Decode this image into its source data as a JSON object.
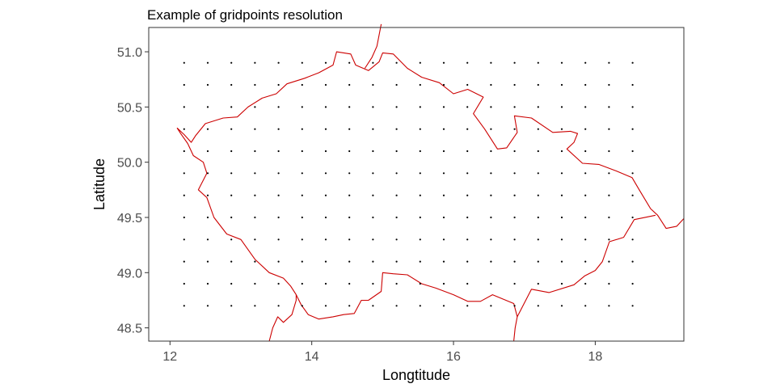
{
  "chart_data": {
    "type": "scatter",
    "title": "Example of gridpoints resolution",
    "xlabel": "Longtitude",
    "ylabel": "Latitude",
    "xlim": [
      11.7,
      19.25
    ],
    "ylim": [
      48.38,
      51.22
    ],
    "x_ticks": [
      12,
      14,
      16,
      18
    ],
    "y_ticks": [
      48.5,
      49.0,
      49.5,
      50.0,
      50.5,
      51.0
    ],
    "x_tick_labels": [
      "12",
      "14",
      "16",
      "18"
    ],
    "y_tick_labels": [
      "48.5",
      "49.0",
      "49.5",
      "50.0",
      "50.5",
      "51.0"
    ],
    "grid": false,
    "gridpoints": {
      "x_start": 12.2,
      "x_step": 0.333,
      "x_count": 20,
      "y_start": 48.7,
      "y_step": 0.2,
      "y_count": 12,
      "color": "#000000"
    },
    "boundary": {
      "color": "#cc0000",
      "lines": [
        [
          [
            12.1,
            50.31
          ],
          [
            12.2,
            50.25
          ],
          [
            12.3,
            50.18
          ],
          [
            12.36,
            50.24
          ],
          [
            12.5,
            50.35
          ],
          [
            12.75,
            50.4
          ],
          [
            12.95,
            50.41
          ],
          [
            13.1,
            50.5
          ],
          [
            13.3,
            50.58
          ],
          [
            13.5,
            50.62
          ],
          [
            13.65,
            50.71
          ],
          [
            13.9,
            50.76
          ],
          [
            14.1,
            50.81
          ],
          [
            14.3,
            50.88
          ],
          [
            14.35,
            51.0
          ],
          [
            14.55,
            50.98
          ],
          [
            14.62,
            50.88
          ],
          [
            14.8,
            50.83
          ],
          [
            14.95,
            50.91
          ],
          [
            15.0,
            50.99
          ],
          [
            15.15,
            50.98
          ],
          [
            15.35,
            50.85
          ],
          [
            15.55,
            50.77
          ],
          [
            15.8,
            50.72
          ],
          [
            16.0,
            50.62
          ],
          [
            16.2,
            50.66
          ],
          [
            16.42,
            50.59
          ],
          [
            16.28,
            50.44
          ],
          [
            16.44,
            50.3
          ],
          [
            16.62,
            50.12
          ],
          [
            16.75,
            50.13
          ],
          [
            16.9,
            50.27
          ],
          [
            16.86,
            50.42
          ],
          [
            17.1,
            50.4
          ],
          [
            17.4,
            50.27
          ],
          [
            17.65,
            50.28
          ],
          [
            17.75,
            50.26
          ],
          [
            17.7,
            50.18
          ],
          [
            17.6,
            50.12
          ],
          [
            17.82,
            49.99
          ],
          [
            18.05,
            49.98
          ],
          [
            18.3,
            49.92
          ],
          [
            18.52,
            49.86
          ],
          [
            18.62,
            49.75
          ],
          [
            18.78,
            49.58
          ],
          [
            18.88,
            49.52
          ],
          [
            19.0,
            49.4
          ],
          [
            19.15,
            49.42
          ],
          [
            19.25,
            49.49
          ]
        ],
        [
          [
            14.98,
            51.25
          ],
          [
            14.92,
            51.05
          ],
          [
            14.85,
            50.95
          ],
          [
            14.75,
            50.85
          ]
        ],
        [
          [
            12.1,
            50.31
          ],
          [
            12.15,
            50.26
          ],
          [
            12.25,
            50.17
          ],
          [
            12.33,
            50.06
          ],
          [
            12.47,
            50.0
          ],
          [
            12.52,
            49.9
          ],
          [
            12.4,
            49.75
          ],
          [
            12.52,
            49.68
          ],
          [
            12.62,
            49.5
          ],
          [
            12.8,
            49.35
          ],
          [
            13.0,
            49.3
          ],
          [
            13.2,
            49.12
          ],
          [
            13.4,
            49.0
          ],
          [
            13.6,
            48.95
          ],
          [
            13.7,
            48.88
          ],
          [
            13.78,
            48.8
          ],
          [
            13.85,
            48.71
          ],
          [
            13.95,
            48.62
          ],
          [
            14.1,
            48.58
          ],
          [
            14.3,
            48.6
          ],
          [
            14.45,
            48.62
          ],
          [
            14.6,
            48.63
          ],
          [
            14.7,
            48.75
          ],
          [
            14.8,
            48.75
          ],
          [
            14.98,
            48.83
          ],
          [
            15.0,
            49.0
          ],
          [
            15.15,
            48.99
          ],
          [
            15.35,
            48.98
          ],
          [
            15.55,
            48.9
          ],
          [
            15.75,
            48.86
          ],
          [
            16.0,
            48.8
          ],
          [
            16.2,
            48.74
          ],
          [
            16.38,
            48.74
          ],
          [
            16.55,
            48.8
          ],
          [
            16.85,
            48.72
          ],
          [
            16.9,
            48.6
          ],
          [
            17.1,
            48.85
          ],
          [
            17.35,
            48.82
          ],
          [
            17.7,
            48.89
          ],
          [
            17.85,
            48.97
          ],
          [
            18.0,
            49.02
          ],
          [
            18.1,
            49.1
          ],
          [
            18.2,
            49.28
          ],
          [
            18.4,
            49.32
          ],
          [
            18.55,
            49.48
          ],
          [
            18.85,
            49.52
          ]
        ],
        [
          [
            13.78,
            48.8
          ],
          [
            13.78,
            48.75
          ],
          [
            13.72,
            48.62
          ],
          [
            13.6,
            48.55
          ],
          [
            13.52,
            48.6
          ],
          [
            13.45,
            48.5
          ],
          [
            13.4,
            48.38
          ]
        ],
        [
          [
            16.9,
            48.6
          ],
          [
            16.87,
            48.5
          ],
          [
            16.85,
            48.38
          ]
        ]
      ]
    }
  }
}
